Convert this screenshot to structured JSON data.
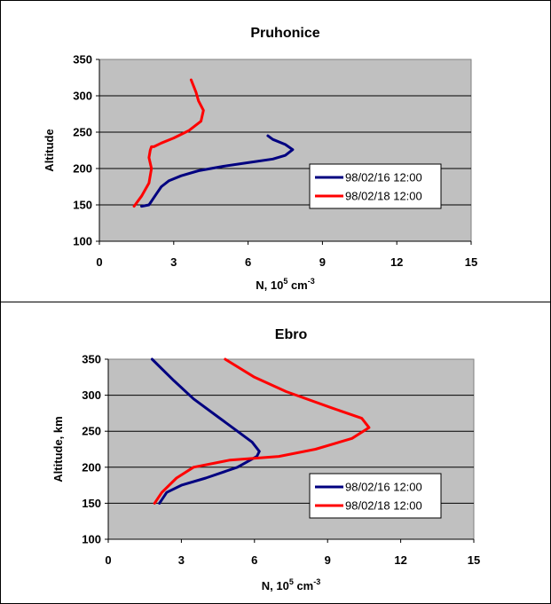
{
  "chart_data": [
    {
      "type": "line",
      "title": "Pruhonice",
      "xlabel_base": "N, 10",
      "xlabel_exp": "5",
      "xlabel_unit": " cm",
      "xlabel_unit_exp": "-3",
      "ylabel": "Altitude",
      "xlim": [
        0,
        15
      ],
      "ylim": [
        100,
        350
      ],
      "xticks": [
        "0",
        "3",
        "6",
        "9",
        "12",
        "15"
      ],
      "yticks": [
        "100",
        "150",
        "200",
        "250",
        "300",
        "350"
      ],
      "grid": true,
      "legend_position": "right",
      "series": [
        {
          "name": "98/02/16 12:00",
          "color": "#000080",
          "points": [
            [
              1.7,
              148
            ],
            [
              2.0,
              150
            ],
            [
              2.1,
              155
            ],
            [
              2.3,
              165
            ],
            [
              2.5,
              175
            ],
            [
              2.8,
              183
            ],
            [
              3.3,
              190
            ],
            [
              4.0,
              197
            ],
            [
              5.0,
              203
            ],
            [
              6.0,
              208
            ],
            [
              7.0,
              213
            ],
            [
              7.5,
              218
            ],
            [
              7.8,
              226
            ],
            [
              7.5,
              233
            ],
            [
              7.0,
              240
            ],
            [
              6.8,
              245
            ]
          ]
        },
        {
          "name": "98/02/18 12:00",
          "color": "#ff0000",
          "points": [
            [
              1.4,
              148
            ],
            [
              1.7,
              162
            ],
            [
              2.0,
              180
            ],
            [
              2.1,
              200
            ],
            [
              2.0,
              215
            ],
            [
              2.05,
              225
            ],
            [
              2.1,
              230
            ],
            [
              2.2,
              230
            ],
            [
              2.5,
              235
            ],
            [
              3.0,
              242
            ],
            [
              3.6,
              252
            ],
            [
              4.1,
              265
            ],
            [
              4.2,
              280
            ],
            [
              4.0,
              293
            ],
            [
              3.9,
              305
            ],
            [
              3.7,
              322
            ]
          ]
        }
      ]
    },
    {
      "type": "line",
      "title": "Ebro",
      "xlabel_base": "N, 10",
      "xlabel_exp": "5",
      "xlabel_unit": " cm",
      "xlabel_unit_exp": "-3",
      "ylabel": "Altitude, km",
      "xlim": [
        0,
        15
      ],
      "ylim": [
        100,
        350
      ],
      "xticks": [
        "0",
        "3",
        "6",
        "9",
        "12",
        "15"
      ],
      "yticks": [
        "100",
        "150",
        "200",
        "250",
        "300",
        "350"
      ],
      "grid": true,
      "legend_position": "right",
      "series": [
        {
          "name": "98/02/16 12:00",
          "color": "#000080",
          "points": [
            [
              2.1,
              150
            ],
            [
              2.4,
              165
            ],
            [
              3.0,
              175
            ],
            [
              4.0,
              185
            ],
            [
              5.3,
              200
            ],
            [
              6.1,
              215
            ],
            [
              6.2,
              222
            ],
            [
              5.9,
              235
            ],
            [
              5.3,
              250
            ],
            [
              4.5,
              270
            ],
            [
              3.5,
              295
            ],
            [
              2.7,
              320
            ],
            [
              1.8,
              350
            ]
          ]
        },
        {
          "name": "98/02/18 12:00",
          "color": "#ff0000",
          "points": [
            [
              1.9,
              150
            ],
            [
              2.2,
              165
            ],
            [
              2.8,
              185
            ],
            [
              3.5,
              200
            ],
            [
              5.0,
              210
            ],
            [
              7.0,
              215
            ],
            [
              8.5,
              225
            ],
            [
              10.0,
              240
            ],
            [
              10.7,
              255
            ],
            [
              10.4,
              268
            ],
            [
              9.2,
              282
            ],
            [
              7.3,
              305
            ],
            [
              6.0,
              325
            ],
            [
              4.8,
              350
            ]
          ]
        }
      ]
    }
  ]
}
